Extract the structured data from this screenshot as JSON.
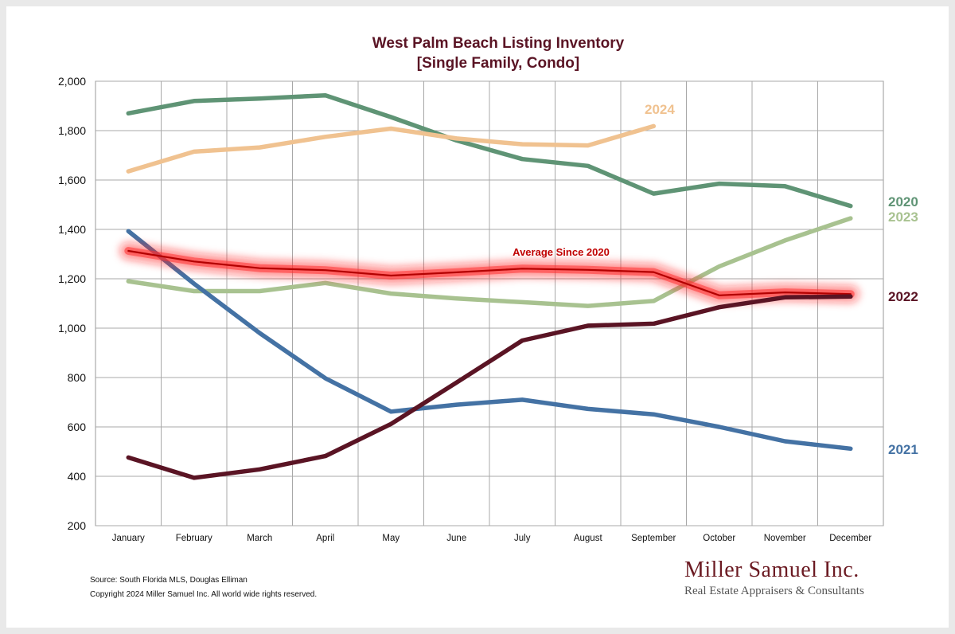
{
  "title_line1": "West Palm Beach Listing Inventory",
  "title_line2": "[Single Family, Condo]",
  "source_line1": "Source: South Florida MLS, Douglas Elliman",
  "source_line2": "Copyright 2024 Miller Samuel Inc.  All world wide rights reserved.",
  "logo_name": "Miller Samuel Inc.",
  "logo_tagline": "Real Estate Appraisers & Consultants",
  "chart_data": {
    "type": "line",
    "title": "West Palm Beach Listing Inventory [Single Family, Condo]",
    "xlabel": "",
    "ylabel": "",
    "ylim": [
      200,
      2000
    ],
    "yticks": [
      200,
      400,
      600,
      800,
      1000,
      1200,
      1400,
      1600,
      1800,
      2000
    ],
    "ytick_labels": [
      "200",
      "400",
      "600",
      "800",
      "1,000",
      "1,200",
      "1,400",
      "1,600",
      "1,800",
      "2,000"
    ],
    "grid": true,
    "categories": [
      "January",
      "February",
      "March",
      "April",
      "May",
      "June",
      "July",
      "August",
      "September",
      "October",
      "November",
      "December"
    ],
    "series": [
      {
        "name": "2020",
        "color": "#5f9475",
        "values": [
          1870,
          1920,
          1930,
          1943,
          1855,
          1760,
          1685,
          1657,
          1545,
          1585,
          1575,
          1495
        ]
      },
      {
        "name": "2021",
        "color": "#4472a4",
        "values": [
          1393,
          1180,
          980,
          797,
          662,
          690,
          710,
          673,
          651,
          600,
          542,
          512
        ]
      },
      {
        "name": "2022",
        "color": "#5a1424",
        "values": [
          476,
          394,
          428,
          482,
          612,
          780,
          950,
          1010,
          1018,
          1085,
          1125,
          1128
        ]
      },
      {
        "name": "2023",
        "color": "#a8c290",
        "values": [
          1190,
          1150,
          1150,
          1183,
          1140,
          1120,
          1105,
          1090,
          1110,
          1250,
          1355,
          1445
        ]
      },
      {
        "name": "2024",
        "color": "#f0c290",
        "values": [
          1635,
          1715,
          1732,
          1775,
          1808,
          1768,
          1745,
          1740,
          1818,
          null,
          null,
          null
        ]
      },
      {
        "name": "Average  Since 2020",
        "color": "#cc0000",
        "glow": true,
        "values": [
          1313,
          1270,
          1243,
          1235,
          1213,
          1226,
          1241,
          1236,
          1227,
          1133,
          1145,
          1138
        ]
      }
    ]
  }
}
